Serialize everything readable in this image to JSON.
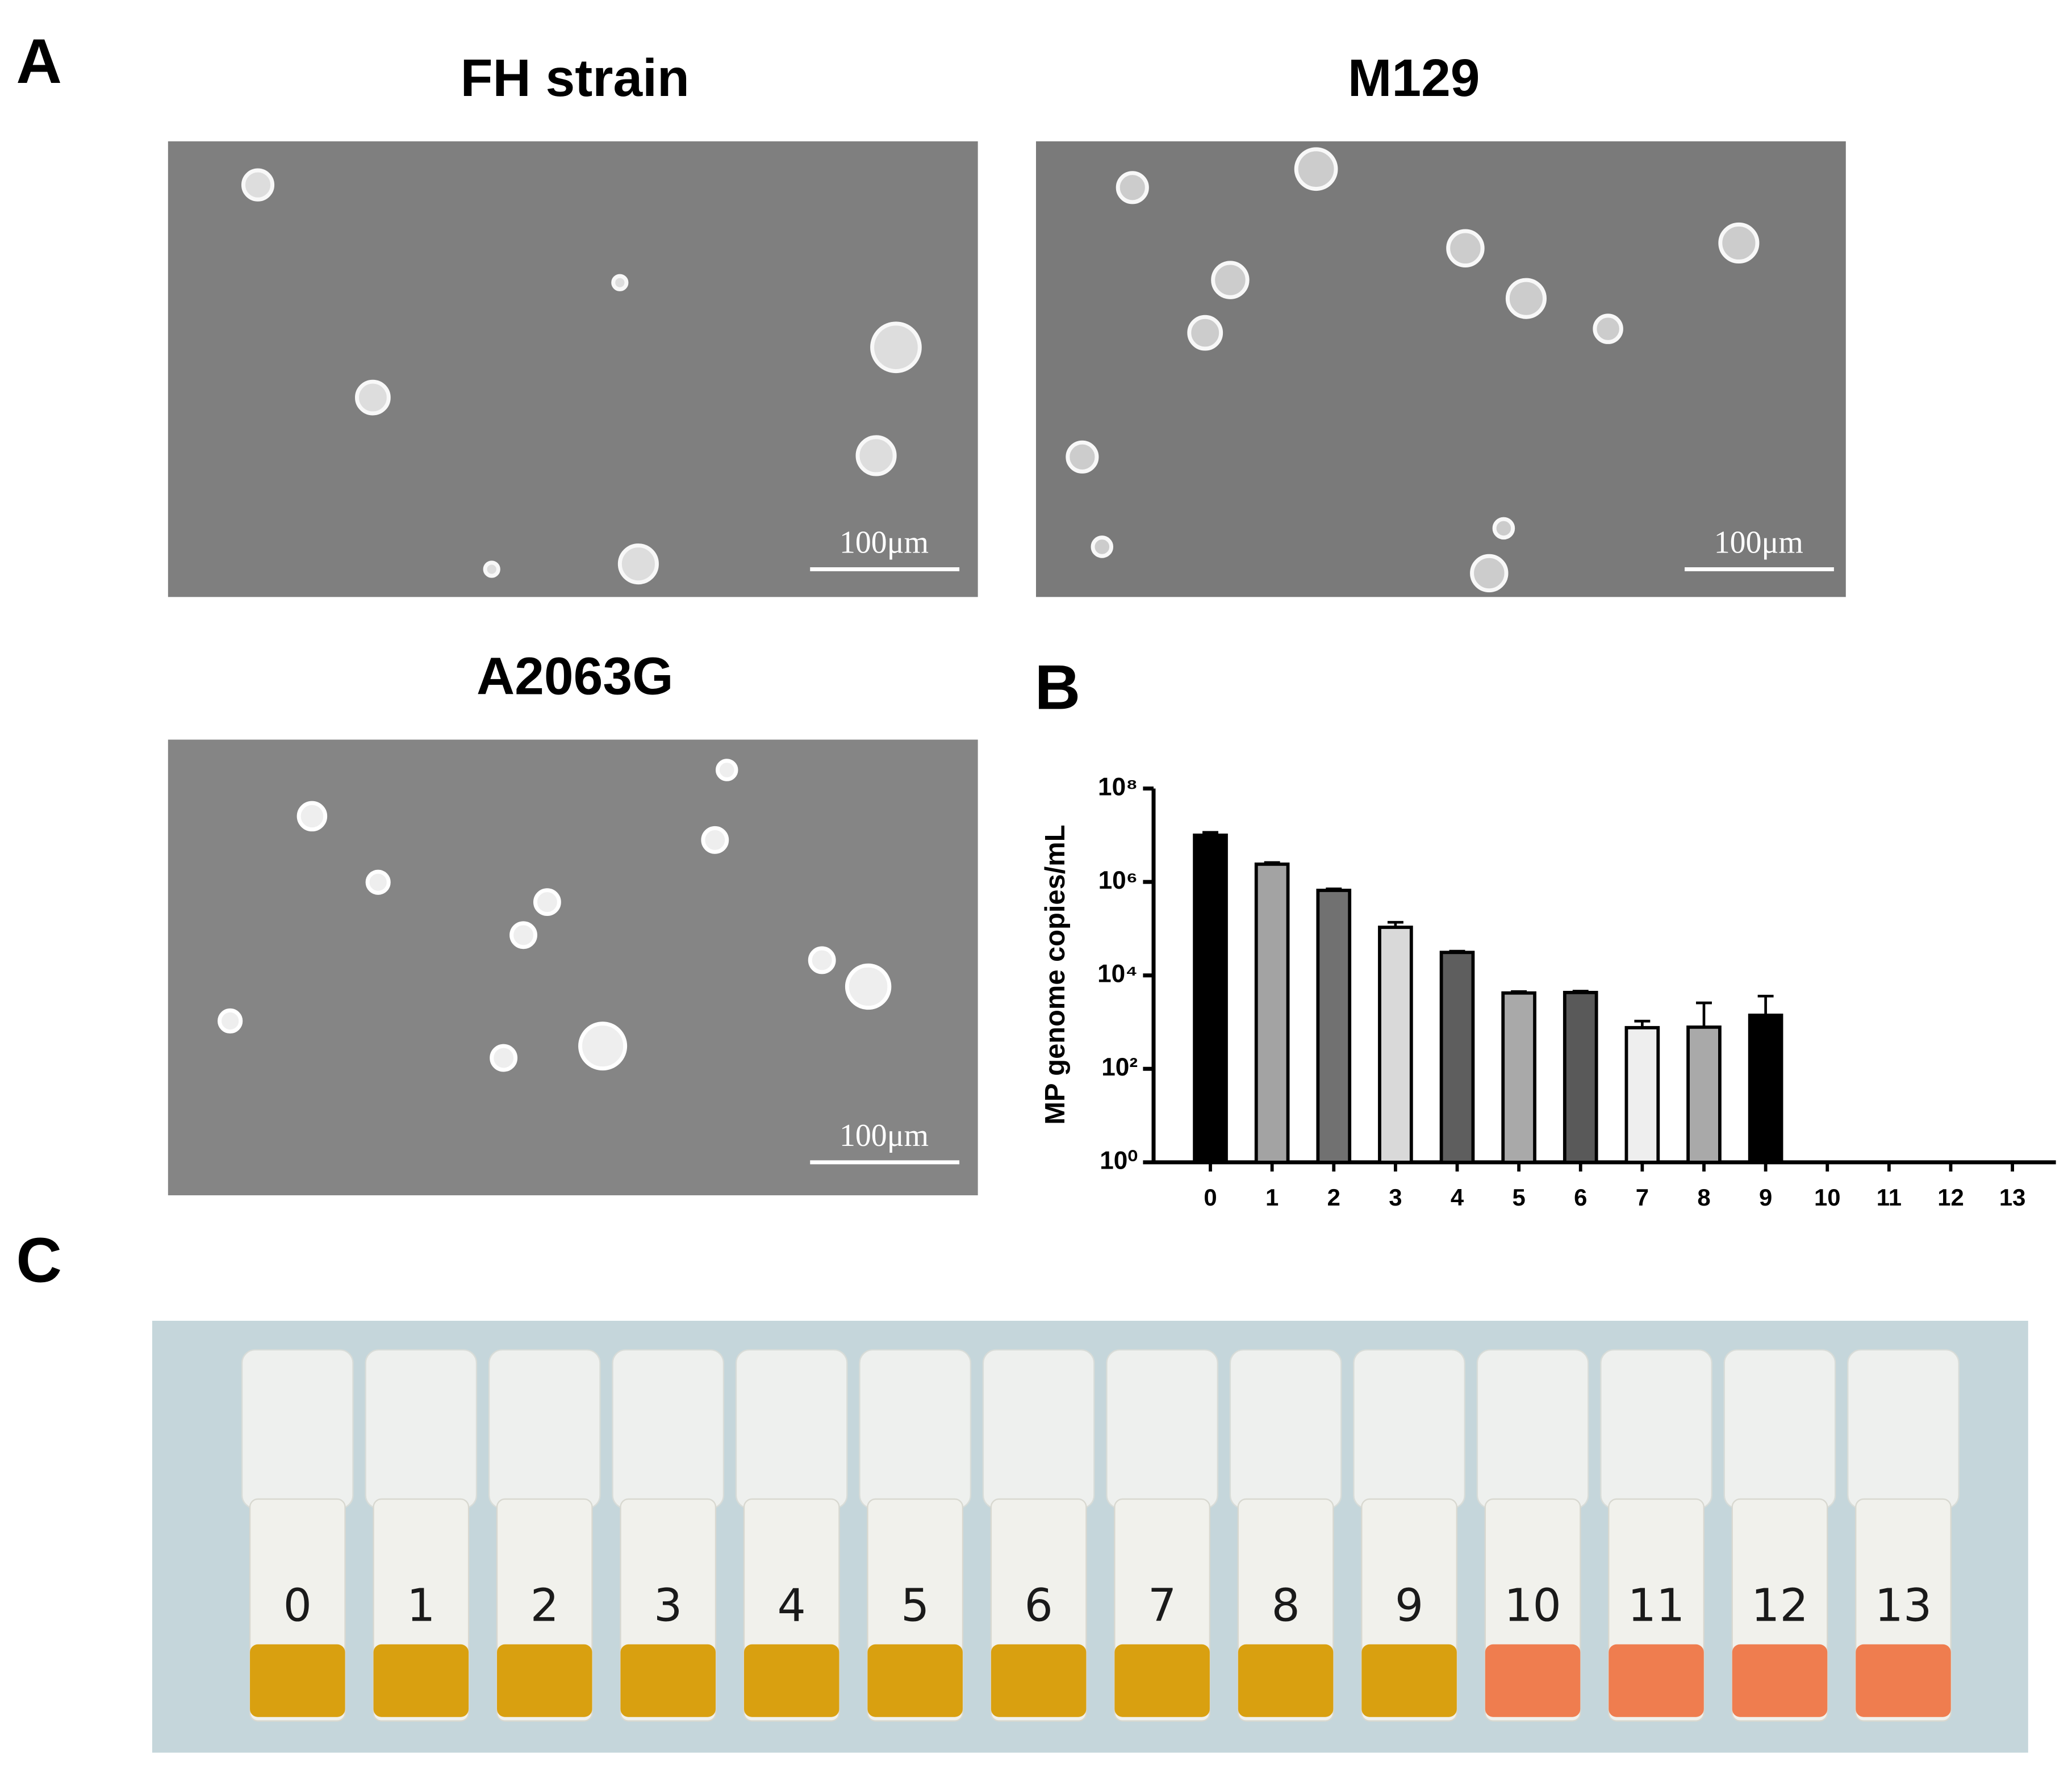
{
  "panel_a": {
    "label": "A",
    "images": [
      {
        "title": "FH strain",
        "scale_bar": "100μm"
      },
      {
        "title": "M129",
        "scale_bar": "100μm"
      },
      {
        "title": "A2063G",
        "scale_bar": "100μm"
      }
    ]
  },
  "chart_data": {
    "type": "bar",
    "panel_label": "B",
    "ylabel": "MP genome copies/mL",
    "categories": [
      "0",
      "1",
      "2",
      "3",
      "4",
      "5",
      "6",
      "7",
      "8",
      "9",
      "10",
      "11",
      "12",
      "13"
    ],
    "values": [
      10000000,
      2400000,
      660000,
      107000,
      31000,
      4200,
      4300,
      760,
      780,
      1400,
      null,
      null,
      null,
      null
    ],
    "errors": [
      1500000,
      200000,
      50000,
      30000,
      2000,
      300,
      300,
      290,
      1800,
      2200,
      null,
      null,
      null,
      null
    ],
    "colors": [
      "#000000",
      "#a3a3a3",
      "#717171",
      "#d9d9d9",
      "#5e5e5e",
      "#a9a9a9",
      "#595959",
      "#eeeeee",
      "#a9a9a9",
      "#000000",
      null,
      null,
      null,
      null
    ],
    "log_scale": true,
    "ylim": [
      1,
      100000000
    ],
    "yticks": [
      {
        "value": 1,
        "label": "10⁰"
      },
      {
        "value": 100,
        "label": "10²"
      },
      {
        "value": 10000,
        "label": "10⁴"
      },
      {
        "value": 1000000,
        "label": "10⁶"
      },
      {
        "value": 100000000,
        "label": "10⁸"
      }
    ]
  },
  "panel_c": {
    "label": "C",
    "tube_labels": [
      "0",
      "1",
      "2",
      "3",
      "4",
      "5",
      "6",
      "7",
      "8",
      "9",
      "10",
      "11",
      "12",
      "13"
    ]
  }
}
